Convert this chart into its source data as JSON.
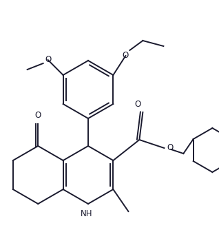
{
  "bg_color": "#ffffff",
  "line_color": "#1a1a2e",
  "line_width": 1.4,
  "font_size": 8.5,
  "figsize": [
    3.18,
    3.5
  ],
  "dpi": 100,
  "xlim": [
    0,
    318
  ],
  "ylim": [
    0,
    350
  ]
}
